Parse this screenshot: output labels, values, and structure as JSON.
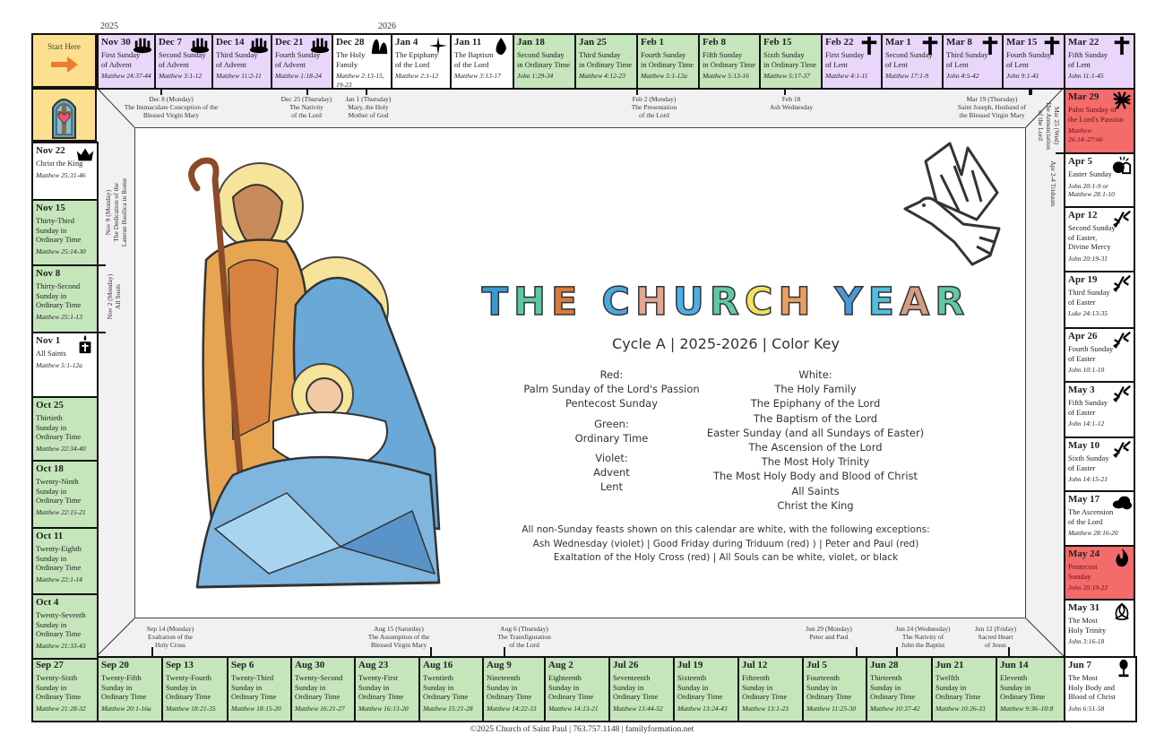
{
  "years": [
    "2025",
    "2026"
  ],
  "start_label": "Start Here",
  "colors": {
    "violet": "#e9d6fa",
    "green": "#c5e5bb",
    "red": "#f36b6b",
    "white": "#ffffff",
    "start": "#fde08f",
    "arrow": "#ef7b2d"
  },
  "top_row": [
    {
      "date": "Nov 30",
      "title": "First Sunday\nof Advent",
      "reading": "Matthew 24:37-44",
      "color": "violet",
      "icon": "advent-wreath"
    },
    {
      "date": "Dec 7",
      "title": "Second Sunday\nof Advent",
      "reading": "Matthew 3:1-12",
      "color": "violet",
      "icon": "advent-wreath"
    },
    {
      "date": "Dec 14",
      "title": "Third Sunday\nof Advent",
      "reading": "Matthew 11:2-11",
      "color": "violet",
      "icon": "advent-wreath"
    },
    {
      "date": "Dec 21",
      "title": "Fourth Sunday\nof Advent",
      "reading": "Matthew 1:18-24",
      "color": "violet",
      "icon": "advent-wreath"
    },
    {
      "date": "Dec 28",
      "title": "The Holy\nFamily",
      "reading": "Matthew 2:13-15, 19-23",
      "color": "white",
      "icon": "holy-family"
    },
    {
      "date": "Jan 4",
      "title": "The Epiphany\nof the Lord",
      "reading": "Matthew 2:1-12",
      "color": "white",
      "icon": "star"
    },
    {
      "date": "Jan 11",
      "title": "The Baptism\nof the Lord",
      "reading": "Matthew 3:13-17",
      "color": "white",
      "icon": "water-drop"
    },
    {
      "date": "Jan 18",
      "title": "Second Sunday\nin Ordinary Time",
      "reading": "John 1:29-34",
      "color": "green"
    },
    {
      "date": "Jan 25",
      "title": "Third Sunday\nin Ordinary Time",
      "reading": "Matthew 4:12-23",
      "color": "green"
    },
    {
      "date": "Feb 1",
      "title": "Fourth Sunday\nin Ordinary Time",
      "reading": "Matthew 5:1-12a",
      "color": "green"
    },
    {
      "date": "Feb 8",
      "title": "Fifth Sunday\nin Ordinary Time",
      "reading": "Matthew 5:13-16",
      "color": "green"
    },
    {
      "date": "Feb 15",
      "title": "Sixth Sunday\nin Ordinary Time",
      "reading": "Matthew 5:17-37",
      "color": "green"
    },
    {
      "date": "Feb 22",
      "title": "First Sunday\nof Lent",
      "reading": "Matthew 4:1-11",
      "color": "violet",
      "icon": "cross"
    },
    {
      "date": "Mar 1",
      "title": "Second Sunday\nof Lent",
      "reading": "Matthew 17:1-9",
      "color": "violet",
      "icon": "cross"
    },
    {
      "date": "Mar 8",
      "title": "Third Sunday\nof Lent",
      "reading": "John 4:5-42",
      "color": "violet",
      "icon": "cross"
    },
    {
      "date": "Mar 15",
      "title": "Fourth Sunday\nof Lent",
      "reading": "John 9:1-41",
      "color": "violet",
      "icon": "cross"
    },
    {
      "date": "Mar 22",
      "title": "Fifth Sunday\nof Lent",
      "reading": "John 11:1-45",
      "color": "violet",
      "icon": "cross"
    }
  ],
  "right_column": [
    {
      "date": "Mar 29",
      "title": "Palm Sunday of\nthe Lord's Passion",
      "reading": "Matthew\n26:14–27:66",
      "color": "red",
      "icon": "palm"
    },
    {
      "date": "Apr 5",
      "title": "Easter Sunday",
      "reading": "John 20:1-9 or\nMatthew 28:1-10",
      "color": "white",
      "icon": "empty-tomb"
    },
    {
      "date": "Apr 12",
      "title": "Second Sunday\nof Easter,\nDivine Mercy",
      "reading": "John 20:19-31",
      "color": "white",
      "icon": "lily"
    },
    {
      "date": "Apr 19",
      "title": "Third Sunday\nof Easter",
      "reading": "Luke 24:13-35",
      "color": "white",
      "icon": "lily"
    },
    {
      "date": "Apr 26",
      "title": "Fourth Sunday\nof Easter",
      "reading": "John 10:1-10",
      "color": "white",
      "icon": "lily"
    },
    {
      "date": "May 3",
      "title": "Fifth Sunday\nof Easter",
      "reading": "John 14:1-12",
      "color": "white",
      "icon": "lily"
    },
    {
      "date": "May 10",
      "title": "Sixth Sunday\nof Easter",
      "reading": "John 14:15-21",
      "color": "white",
      "icon": "lily"
    },
    {
      "date": "May 17",
      "title": "The Ascension\nof the Lord",
      "reading": "Matthew 28:16-20",
      "color": "white",
      "icon": "cloud"
    },
    {
      "date": "May 24",
      "title": "Pentecost\nSunday",
      "reading": "John 20:19-23",
      "color": "red",
      "icon": "flame"
    },
    {
      "date": "May 31",
      "title": "The Most\nHoly Trinity",
      "reading": "John 3:16-18",
      "color": "white",
      "icon": "trinity-knot"
    }
  ],
  "bottom_row": [
    {
      "date": "Sep 27",
      "title": "Twenty-Sixth\nSunday in\nOrdinary Time",
      "reading": "Matthew 21:28-32",
      "color": "green"
    },
    {
      "date": "Sep 20",
      "title": "Twenty-Fifth\nSunday in\nOrdinary Time",
      "reading": "Matthew 20:1-16a",
      "color": "green"
    },
    {
      "date": "Sep 13",
      "title": "Twenty-Fourth\nSunday in\nOrdinary Time",
      "reading": "Matthew 18:21-35",
      "color": "green"
    },
    {
      "date": "Sep 6",
      "title": "Twenty-Third\nSunday in\nOrdinary Time",
      "reading": "Matthew 18:15-20",
      "color": "green"
    },
    {
      "date": "Aug 30",
      "title": "Twenty-Second\nSunday in\nOrdinary Time",
      "reading": "Matthew 16:21-27",
      "color": "green"
    },
    {
      "date": "Aug 23",
      "title": "Twenty-First\nSunday in\nOrdinary Time",
      "reading": "Matthew 16:13-20",
      "color": "green"
    },
    {
      "date": "Aug 16",
      "title": "Twentieth\nSunday in\nOrdinary Time",
      "reading": "Matthew 15:21-28",
      "color": "green"
    },
    {
      "date": "Aug 9",
      "title": "Nineteenth\nSunday in\nOrdinary Time",
      "reading": "Matthew 14:22-33",
      "color": "green"
    },
    {
      "date": "Aug 2",
      "title": "Eighteenth\nSunday in\nOrdinary Time",
      "reading": "Matthew 14:13-21",
      "color": "green"
    },
    {
      "date": "Jul 26",
      "title": "Seventeenth\nSunday in\nOrdinary Time",
      "reading": "Matthew 13:44-52",
      "color": "green"
    },
    {
      "date": "Jul 19",
      "title": "Sixteenth\nSunday in\nOrdinary Time",
      "reading": "Matthew 13:24-43",
      "color": "green"
    },
    {
      "date": "Jul 12",
      "title": "Fifteenth\nSunday in\nOrdinary Time",
      "reading": "Matthew 13:1-23",
      "color": "green"
    },
    {
      "date": "Jul 5",
      "title": "Fourteenth\nSunday in\nOrdinary Time",
      "reading": "Matthew 11:25-30",
      "color": "green"
    },
    {
      "date": "Jun 28",
      "title": "Thirteenth\nSunday in\nOrdinary Time",
      "reading": "Matthew 10:37-42",
      "color": "green"
    },
    {
      "date": "Jun 21",
      "title": "Twelfth\nSunday in\nOrdinary Time",
      "reading": "Matthew 10:26-33",
      "color": "green"
    },
    {
      "date": "Jun 14",
      "title": "Eleventh\nSunday in\nOrdinary Time",
      "reading": "Matthew 9:36–10:8",
      "color": "green"
    },
    {
      "date": "Jun 7",
      "title": "The Most\nHoly Body and\nBlood of Christ",
      "reading": "John 6:51-58",
      "color": "white",
      "icon": "chalice"
    }
  ],
  "left_column": [
    {
      "date": "Nov 22",
      "title": "Christ the King",
      "reading": "Matthew 25:31-46",
      "color": "white",
      "icon": "crown"
    },
    {
      "date": "Nov 15",
      "title": "Thirty-Third\nSunday in\nOrdinary Time",
      "reading": "Matthew 25:14-30",
      "color": "green"
    },
    {
      "date": "Nov 8",
      "title": "Thirty-Second\nSunday in\nOrdinary Time",
      "reading": "Matthew 25:1-13",
      "color": "green"
    },
    {
      "date": "Nov 1",
      "title": "All Saints",
      "reading": "Matthew 5:1-12a",
      "color": "white",
      "icon": "candle"
    },
    {
      "date": "Oct 25",
      "title": "Thirtieth\nSunday in\nOrdinary Time",
      "reading": "Matthew 22:34-40",
      "color": "green"
    },
    {
      "date": "Oct 18",
      "title": "Twenty-Ninth\nSunday in\nOrdinary Time",
      "reading": "Matthew 22:15-21",
      "color": "green"
    },
    {
      "date": "Oct 11",
      "title": "Twenty-Eighth\nSunday in\nOrdinary Time",
      "reading": "Matthew 22:1-14",
      "color": "green"
    },
    {
      "date": "Oct 4",
      "title": "Twenty-Seventh\nSunday in\nOrdinary Time",
      "reading": "Matthew 21:33-43",
      "color": "green"
    }
  ],
  "feasts": {
    "top": [
      "Dec 8 (Monday)\nThe Immaculate Conception of the\nBlessed Virgin Mary",
      "Dec 25 (Thursday)\nThe Nativity\nof the Lord",
      "Jan 1 (Thursday)\nMary, the Holy\nMother of God",
      "Feb 2 (Monday)\nThe Presentation\nof the Lord",
      "Feb 18\nAsh Wednesday",
      "Mar 19 (Thursday)\nSaint Joseph, Husband of\nthe Blessed Virgin Mary"
    ],
    "right": [
      "Mar 25 (Wed)\nThe Annunciation\nof the Lord",
      "Apr 2-4 Triduum"
    ],
    "left": [
      "Nov 9 (Monday)\nThe Dedication of the\nLateran Basilica in Rome",
      "Nov 2 (Monday)\nAll Souls"
    ],
    "bottom": [
      "Sep 14 (Monday)\nExaltation of the\nHoly Cross",
      "Aug 15 (Saturday)\nThe Assumption of the\nBlessed Virgin Mary",
      "Aug 6 (Thursday)\nThe Transfiguration\nof the Lord",
      "Jun 29 (Monday)\nPeter and Paul",
      "Jun 24 (Wednesday)\nThe Nativity of\nJohn the Baptist",
      "Jun 12 (Friday)\nSacred Heart\nof Jesus"
    ]
  },
  "title": {
    "letters": [
      "T",
      "H",
      "E",
      " ",
      "C",
      "H",
      "U",
      "R",
      "C",
      "H",
      " ",
      "Y",
      "E",
      "A",
      "R"
    ],
    "letter_colors": [
      "#3a9ad0",
      "#5cc8a0",
      "#d87a40",
      "",
      "#4aa8e0",
      "#e0a890",
      "#4ab0e8",
      "#60c8a8",
      "#f4e060",
      "#e8a060",
      "",
      "#4a98d8",
      "#50c0e0",
      "#d89c80",
      "#60c8a8"
    ]
  },
  "subtitle": "Cycle A  |  2025-2026  |  Color Key",
  "color_key": {
    "left": [
      "Red:",
      "Palm Sunday of the Lord's Passion",
      "Pentecost Sunday",
      "Green:",
      "Ordinary Time",
      "Violet:",
      "Advent",
      "Lent"
    ],
    "right": [
      "White:",
      "The Holy Family",
      "The Epiphany of the Lord",
      "The Baptism of the Lord",
      "Easter Sunday (and all Sundays of Easter)",
      "The Ascension of the Lord",
      "The Most Holy Trinity",
      "The Most Holy Body and Blood of Christ",
      "All Saints",
      "Christ the King"
    ]
  },
  "notes": [
    "All non-Sunday feasts shown on this calendar are white, with the following exceptions:",
    "Ash Wednesday (violet)  |  Good Friday during Triduum (red) )  |  Peter and Paul (red)",
    "Exaltation of the Holy Cross (red)  |  All Souls can be white, violet, or black"
  ],
  "footer": "©2025 Church of Saint Paul  |  763.757.1148  |  familyformation.net"
}
